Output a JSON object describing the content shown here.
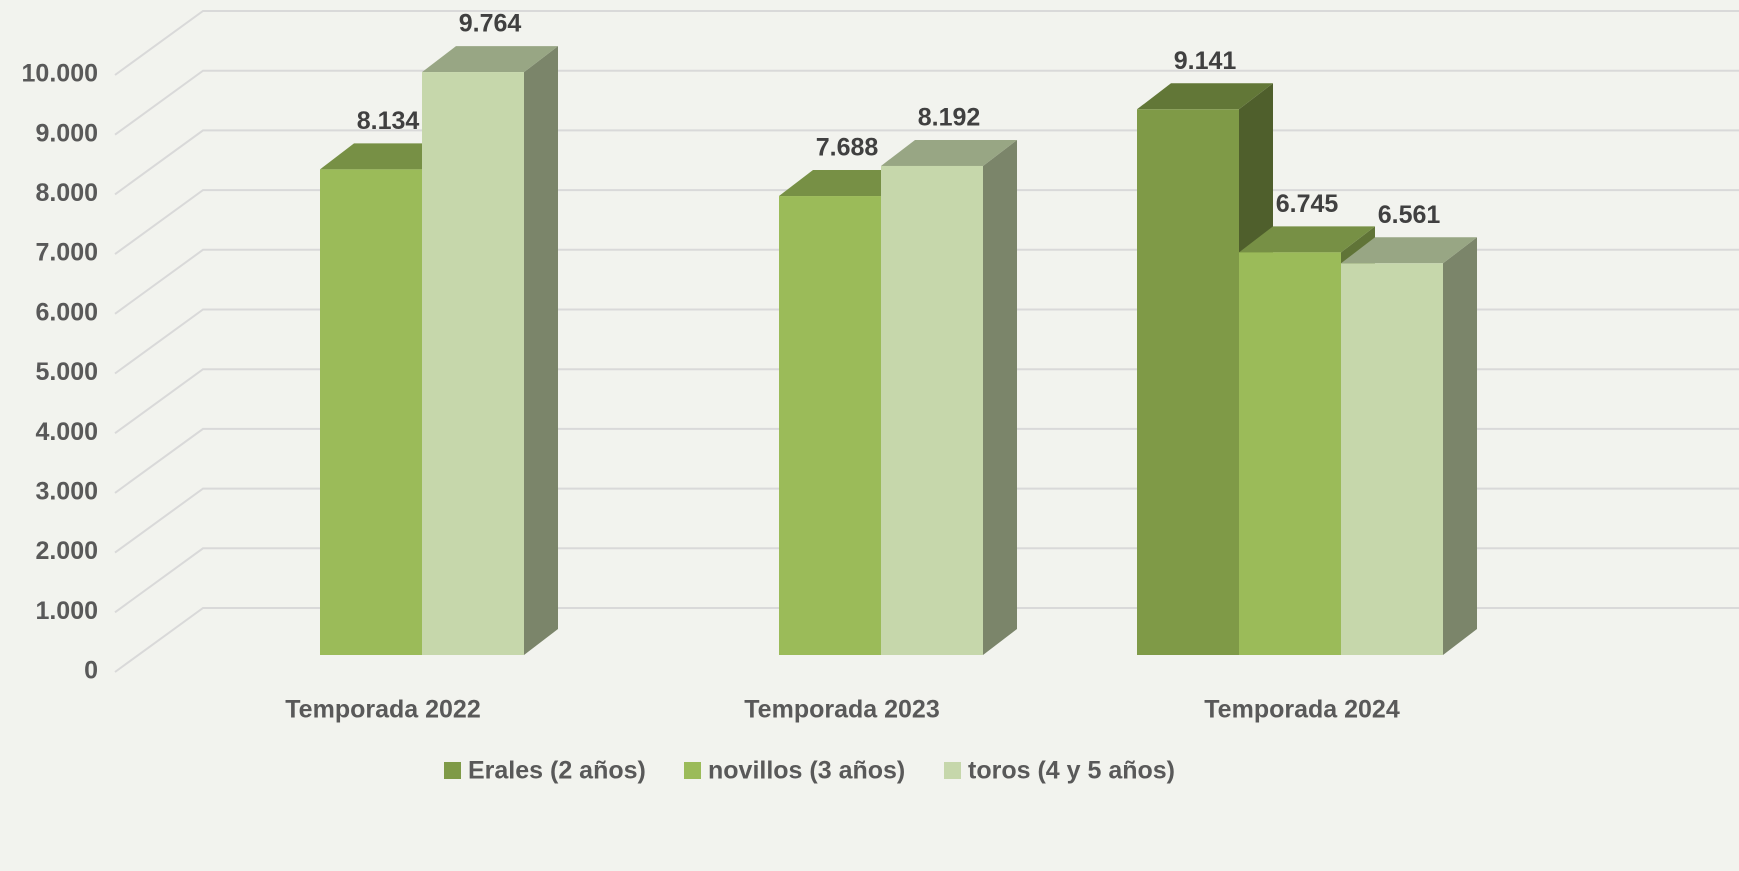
{
  "chart_data": {
    "type": "bar3d",
    "categories": [
      "Temporada 2022",
      "Temporada 2023",
      "Temporada 2024"
    ],
    "series": [
      {
        "name": "Erales (2 años)",
        "color": "#7f9a47",
        "values": [
          null,
          null,
          9141
        ],
        "value_labels": [
          null,
          null,
          "9.141"
        ]
      },
      {
        "name": "novillos (3 años)",
        "color": "#9bbb59",
        "values": [
          8134,
          7688,
          6745
        ],
        "value_labels": [
          "8.134",
          "7.688",
          "6.745"
        ]
      },
      {
        "name": "toros (4 y 5 años)",
        "color": "#c6d7ab",
        "values": [
          9764,
          8192,
          6561
        ],
        "value_labels": [
          "9.764",
          "8.192",
          "6.561"
        ]
      }
    ],
    "ylim": [
      0,
      10000
    ],
    "yticks": [
      0,
      {
        "value": 1000,
        "label": "1.000"
      },
      {
        "value": 2000,
        "label": "2.000"
      },
      {
        "value": 3000,
        "label": "3.000"
      },
      {
        "value": 4000,
        "label": "4.000"
      },
      {
        "value": 5000,
        "label": "5.000"
      },
      {
        "value": 6000,
        "label": "6.000"
      },
      {
        "value": 7000,
        "label": "7.000"
      },
      {
        "value": 8000,
        "label": "8.000"
      },
      {
        "value": 9000,
        "label": "9.000"
      },
      {
        "value": 10000,
        "label": "10.000"
      }
    ],
    "grid": true,
    "legend": "bottom"
  }
}
